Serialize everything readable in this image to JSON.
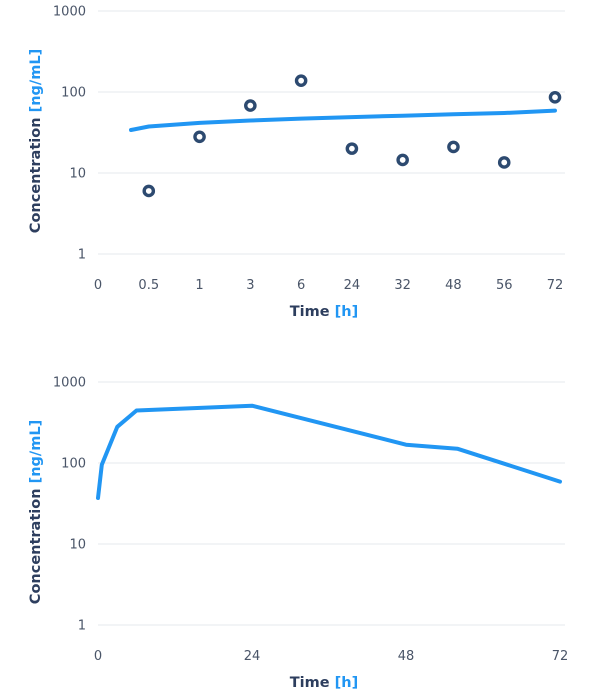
{
  "chart_data": [
    {
      "type": "scatter",
      "y_scale": "log",
      "ylim": [
        1,
        1000
      ],
      "y_ticks": [
        "1",
        "10",
        "100",
        "1000"
      ],
      "categories": [
        "0",
        "0.5",
        "1",
        "3",
        "6",
        "24",
        "32",
        "48",
        "56",
        "72"
      ],
      "xlabel": "Time",
      "xlabel_unit": "[h]",
      "ylabel": "Concentration",
      "ylabel_unit": "[ng/mL]",
      "grid": true,
      "points": [
        {
          "x": "0.5",
          "y": 6
        },
        {
          "x": "1",
          "y": 28
        },
        {
          "x": "3",
          "y": 68
        },
        {
          "x": "6",
          "y": 138
        },
        {
          "x": "24",
          "y": 20
        },
        {
          "x": "32",
          "y": 14.5
        },
        {
          "x": "48",
          "y": 21
        },
        {
          "x": "56",
          "y": 13.5
        },
        {
          "x": "72",
          "y": 86
        }
      ],
      "fit_line": [
        {
          "x": 0.65,
          "y": 34
        },
        {
          "x": 1,
          "y": 37.5
        },
        {
          "x": 2,
          "y": 41.5
        },
        {
          "x": 3,
          "y": 44.5
        },
        {
          "x": 4,
          "y": 47
        },
        {
          "x": 5,
          "y": 49
        },
        {
          "x": 6,
          "y": 51
        },
        {
          "x": 7,
          "y": 53
        },
        {
          "x": 8,
          "y": 55
        },
        {
          "x": 9,
          "y": 59
        }
      ],
      "point_color": "#2d4a70",
      "line_color": "#2196f3"
    },
    {
      "type": "line",
      "y_scale": "log",
      "ylim": [
        1,
        1000
      ],
      "xlim": [
        0,
        72
      ],
      "y_ticks": [
        "1",
        "10",
        "100",
        "1000"
      ],
      "x_ticks": [
        0,
        24,
        48,
        72
      ],
      "xlabel": "Time",
      "xlabel_unit": "[h]",
      "ylabel": "Concentration",
      "ylabel_unit": "[ng/mL]",
      "grid": true,
      "series": [
        {
          "points": [
            {
              "x": 0,
              "y": 37
            },
            {
              "x": 0.6,
              "y": 95
            },
            {
              "x": 3,
              "y": 280
            },
            {
              "x": 6,
              "y": 445
            },
            {
              "x": 24,
              "y": 510
            },
            {
              "x": 48,
              "y": 168
            },
            {
              "x": 56,
              "y": 150
            },
            {
              "x": 72,
              "y": 59
            }
          ]
        }
      ],
      "line_color": "#2196f3"
    }
  ]
}
